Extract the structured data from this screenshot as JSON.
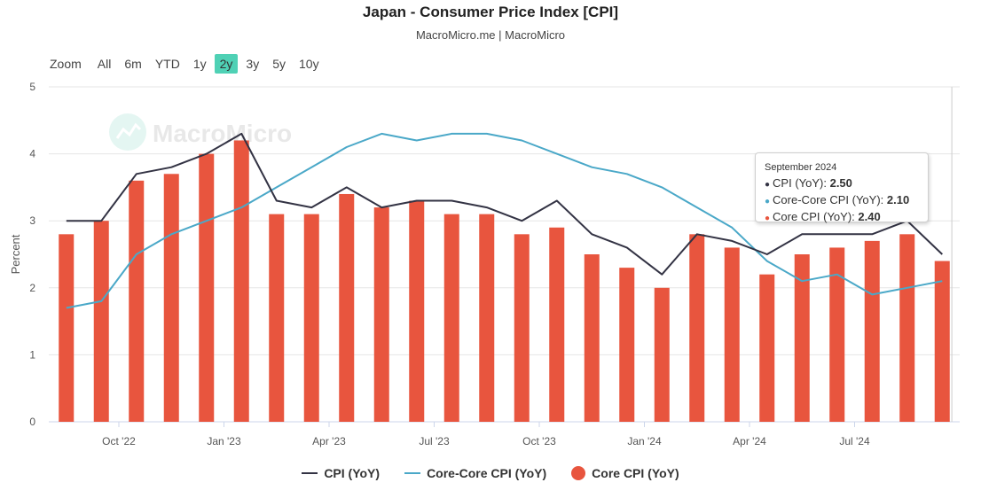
{
  "header": {
    "title": "Japan - Consumer Price Index [CPI]",
    "subtitle": "MacroMicro.me | MacroMicro"
  },
  "watermark": {
    "text": "MacroMicro"
  },
  "zoom": {
    "label": "Zoom",
    "options": [
      "All",
      "6m",
      "YTD",
      "1y",
      "2y",
      "3y",
      "5y",
      "10y"
    ],
    "selected": "2y"
  },
  "colors": {
    "cpi": "#333344",
    "core_core": "#4aa8c8",
    "core": "#e8553e",
    "grid": "#e6e6e6",
    "accent": "#4fd1b5"
  },
  "tooltip": {
    "date": "September 2024",
    "rows": [
      {
        "label": "CPI (YoY): ",
        "value": "2.50"
      },
      {
        "label": "Core-Core CPI (YoY): ",
        "value": "2.10"
      },
      {
        "label": "Core CPI (YoY): ",
        "value": "2.40"
      }
    ]
  },
  "chart_data": {
    "type": "bar",
    "title": "Japan - Consumer Price Index [CPI]",
    "ylabel": "Percent",
    "ylim": [
      0,
      5
    ],
    "yticks": [
      0,
      1,
      2,
      3,
      4,
      5
    ],
    "x_start": "2022-08",
    "categories": [
      "Aug '22",
      "Sep '22",
      "Oct '22",
      "Nov '22",
      "Dec '22",
      "Jan '23",
      "Feb '23",
      "Mar '23",
      "Apr '23",
      "May '23",
      "Jun '23",
      "Jul '23",
      "Aug '23",
      "Sep '23",
      "Oct '23",
      "Nov '23",
      "Dec '23",
      "Jan '24",
      "Feb '24",
      "Mar '24",
      "Apr '24",
      "May '24",
      "Jun '24",
      "Jul '24",
      "Aug '24",
      "Sep '24"
    ],
    "x_tick_labels": [
      {
        "index": 1.5,
        "label": "Oct '22"
      },
      {
        "index": 4.5,
        "label": "Jan '23"
      },
      {
        "index": 7.5,
        "label": "Apr '23"
      },
      {
        "index": 10.5,
        "label": "Jul '23"
      },
      {
        "index": 13.5,
        "label": "Oct '23"
      },
      {
        "index": 16.5,
        "label": "Jan '24"
      },
      {
        "index": 19.5,
        "label": "Apr '24"
      },
      {
        "index": 22.5,
        "label": "Jul '24"
      }
    ],
    "series": [
      {
        "name": "CPI (YoY)",
        "type": "line",
        "values": [
          3.0,
          3.0,
          3.7,
          3.8,
          4.0,
          4.3,
          3.3,
          3.2,
          3.5,
          3.2,
          3.3,
          3.3,
          3.2,
          3.0,
          3.3,
          2.8,
          2.6,
          2.2,
          2.8,
          2.7,
          2.5,
          2.8,
          2.8,
          2.8,
          3.0,
          2.5
        ]
      },
      {
        "name": "Core-Core CPI (YoY)",
        "type": "line",
        "values": [
          1.7,
          1.8,
          2.5,
          2.8,
          3.0,
          3.2,
          3.5,
          3.8,
          4.1,
          4.3,
          4.2,
          4.3,
          4.3,
          4.2,
          4.0,
          3.8,
          3.7,
          3.5,
          3.2,
          2.9,
          2.4,
          2.1,
          2.2,
          1.9,
          2.0,
          2.1
        ]
      },
      {
        "name": "Core CPI (YoY)",
        "type": "bar",
        "values": [
          2.8,
          3.0,
          3.6,
          3.7,
          4.0,
          4.2,
          3.1,
          3.1,
          3.4,
          3.2,
          3.3,
          3.1,
          3.1,
          2.8,
          2.9,
          2.5,
          2.3,
          2.0,
          2.8,
          2.6,
          2.2,
          2.5,
          2.6,
          2.7,
          2.8,
          2.4
        ]
      }
    ],
    "legend": [
      "CPI (YoY)",
      "Core-Core CPI (YoY)",
      "Core CPI (YoY)"
    ]
  }
}
